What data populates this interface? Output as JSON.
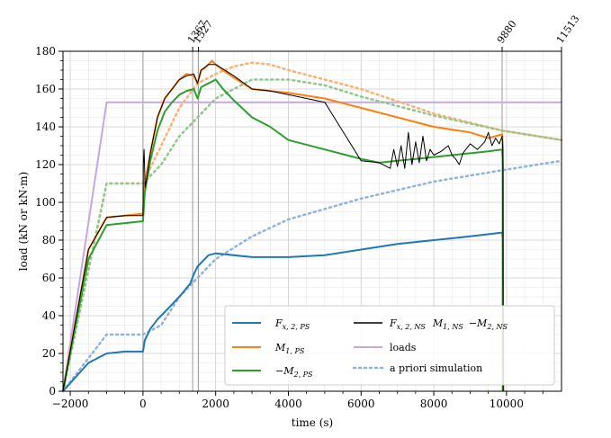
{
  "chart_data": {
    "type": "line",
    "xlabel": "time (s)",
    "ylabel": "load (kN or kN·m)",
    "xlim": [
      -2200,
      11513
    ],
    "ylim": [
      0,
      180
    ],
    "x_ticks": [
      -2000,
      0,
      2000,
      4000,
      6000,
      8000,
      10000
    ],
    "x_tick_labels": [
      "−2000",
      "0",
      "2000",
      "4000",
      "6000",
      "8000",
      "10000"
    ],
    "y_ticks": [
      0,
      20,
      40,
      60,
      80,
      100,
      120,
      140,
      160,
      180
    ],
    "y_tick_labels": [
      "0",
      "20",
      "40",
      "60",
      "80",
      "100",
      "120",
      "140",
      "160",
      "180"
    ],
    "top_ticks": [
      1367,
      1527,
      9880,
      11513
    ],
    "top_tick_labels": [
      "1367",
      "1527",
      "9880",
      "11513"
    ],
    "grid": true,
    "legend_position": "lower-right",
    "colors": {
      "blue": "#1f77b4",
      "orange": "#ff7f0e",
      "green": "#2ca02c",
      "black": "#000000",
      "purple": "#c5a7e6",
      "sim_blue": "#8fb3dc",
      "sim_orange": "#ffb070",
      "sim_green": "#90c78a"
    },
    "legend": [
      {
        "label": "F",
        "sub": "x, 2, PS",
        "color": "blue",
        "style": "solid"
      },
      {
        "label": "M",
        "sub": "1, PS",
        "color": "orange",
        "style": "solid"
      },
      {
        "label": "−M",
        "sub": "2, PS",
        "color": "green",
        "style": "solid"
      },
      {
        "label": "F",
        "sub": "x, 2, NS",
        "extra": "M",
        "extra_sub": "1, NS",
        "extra2": "−M",
        "extra2_sub": "2, NS",
        "color": "black",
        "style": "solid"
      },
      {
        "label": "loads",
        "color": "purple",
        "style": "solid"
      },
      {
        "label": "a priori simulation",
        "color": "sim_blue",
        "style": "dotted"
      }
    ],
    "series": [
      {
        "key": "loads",
        "color": "purple",
        "style": "solid",
        "x": [
          -2200,
          -1000,
          9880,
          9950,
          11513
        ],
        "y": [
          0,
          153,
          153,
          153,
          153
        ]
      },
      {
        "key": "sim_Fx",
        "color": "sim_blue",
        "style": "dotted",
        "x": [
          -2200,
          -1000,
          0,
          500,
          1000,
          2000,
          3000,
          4000,
          6000,
          8000,
          9880,
          11513
        ],
        "y": [
          0,
          30,
          30,
          35,
          50,
          70,
          82,
          91,
          102,
          111,
          117,
          122
        ]
      },
      {
        "key": "sim_M1",
        "color": "sim_orange",
        "style": "dotted",
        "x": [
          -2200,
          -1000,
          0,
          500,
          1000,
          1500,
          2000,
          2500,
          3000,
          3500,
          4000,
          6000,
          8000,
          9880,
          11513
        ],
        "y": [
          0,
          110,
          110,
          130,
          150,
          163,
          168,
          172,
          174,
          173,
          170,
          160,
          147,
          138,
          133
        ]
      },
      {
        "key": "sim_M2",
        "color": "sim_green",
        "style": "dotted",
        "x": [
          -2200,
          -1000,
          0,
          500,
          1000,
          2000,
          3000,
          4000,
          5000,
          6000,
          8000,
          9880,
          11513
        ],
        "y": [
          0,
          110,
          110,
          120,
          135,
          155,
          165,
          165,
          162,
          156,
          146,
          138,
          133
        ]
      },
      {
        "key": "Fx_PS",
        "color": "blue",
        "style": "solid",
        "x": [
          -2200,
          -1500,
          -1000,
          -500,
          0,
          50,
          200,
          400,
          600,
          1000,
          1300,
          1400,
          1500,
          1600,
          1800,
          2000,
          3000,
          4000,
          5000,
          6000,
          7000,
          8000,
          9000,
          9880,
          9900,
          9910
        ],
        "y": [
          0,
          15,
          20,
          21,
          21,
          27,
          33,
          38,
          42,
          50,
          57,
          62,
          66,
          68,
          72,
          73,
          71,
          71,
          72,
          75,
          78,
          80,
          82,
          84,
          80,
          0
        ]
      },
      {
        "key": "M1_PS",
        "color": "orange",
        "style": "solid",
        "x": [
          -2200,
          -1500,
          -1000,
          -500,
          0,
          50,
          200,
          400,
          600,
          800,
          1000,
          1200,
          1400,
          1500,
          1600,
          1700,
          1800,
          1900,
          2000,
          2200,
          2500,
          3000,
          3500,
          4000,
          5000,
          6000,
          7000,
          8000,
          9000,
          9500,
          9880,
          9900,
          9910
        ],
        "y": [
          0,
          75,
          92,
          93,
          94,
          110,
          126,
          145,
          155,
          160,
          165,
          168,
          167,
          163,
          170,
          171,
          173,
          175,
          173,
          170,
          166,
          160,
          159,
          158,
          155,
          150,
          145,
          140,
          137,
          134,
          136,
          130,
          0
        ]
      },
      {
        "key": "M2_PS",
        "color": "green",
        "style": "solid",
        "x": [
          -2200,
          -1500,
          -1000,
          -500,
          0,
          50,
          200,
          400,
          600,
          800,
          1000,
          1200,
          1400,
          1500,
          1600,
          1800,
          2000,
          2200,
          2500,
          3000,
          3500,
          4000,
          5000,
          6000,
          6500,
          7000,
          7500,
          8000,
          8500,
          9000,
          9500,
          9880,
          9900,
          9910
        ],
        "y": [
          0,
          70,
          88,
          89,
          90,
          105,
          122,
          138,
          148,
          153,
          157,
          159,
          160,
          155,
          161,
          163,
          165,
          160,
          154,
          145,
          140,
          133,
          128,
          123,
          121,
          122,
          123,
          124,
          125,
          126,
          127,
          128,
          120,
          0
        ]
      },
      {
        "key": "NS",
        "color": "black",
        "style": "solid",
        "x": [
          -2200,
          -1500,
          -1000,
          -500,
          0,
          10,
          30,
          60,
          100,
          200,
          400,
          600,
          800,
          1000,
          1200,
          1400,
          1500,
          1600,
          1800,
          2000,
          2500,
          3000,
          3500,
          4000,
          5000,
          6000,
          6500,
          6800,
          6900,
          7000,
          7100,
          7200,
          7300,
          7400,
          7500,
          7600,
          7700,
          7800,
          7900,
          8000,
          8200,
          8400,
          8500,
          8600,
          8700,
          8800,
          9000,
          9200,
          9400,
          9500,
          9600,
          9700,
          9800,
          9880,
          9900,
          9910
        ],
        "y": [
          0,
          75,
          92,
          93,
          93,
          120,
          128,
          108,
          112,
          126,
          145,
          155,
          160,
          165,
          167,
          168,
          163,
          170,
          173,
          173,
          167,
          160,
          159,
          157,
          153,
          122,
          121,
          118,
          128,
          119,
          130,
          118,
          137,
          120,
          132,
          121,
          135,
          122,
          128,
          125,
          127,
          130,
          125,
          123,
          120,
          126,
          131,
          128,
          132,
          137,
          130,
          134,
          131,
          135,
          128,
          0
        ]
      }
    ]
  }
}
